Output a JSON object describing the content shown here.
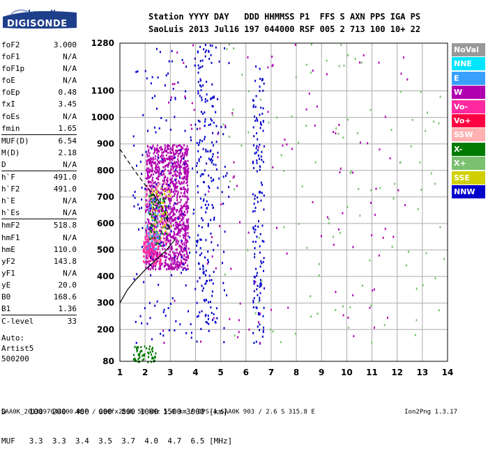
{
  "logo": {
    "top": "Lowell",
    "bottom": "DIGISONDE"
  },
  "header": {
    "line1": "Station YYYY DAY   DDD HHMMSS P1  FFS S AXN PPS IGA PS",
    "line2": "SaoLuis 2013 Jul16 197 044000 RSF 005 2 713 100 10+ 22"
  },
  "params": [
    {
      "name": "foF2",
      "value": "3.000",
      "sep": false
    },
    {
      "name": "foF1",
      "value": "N/A",
      "sep": false
    },
    {
      "name": "foF1p",
      "value": "N/A",
      "sep": false
    },
    {
      "name": "foE",
      "value": "N/A",
      "sep": false
    },
    {
      "name": "foEp",
      "value": "0.48",
      "sep": false
    },
    {
      "name": "fxI",
      "value": "3.45",
      "sep": false
    },
    {
      "name": "foEs",
      "value": "N/A",
      "sep": false
    },
    {
      "name": "fmin",
      "value": "1.65",
      "sep": false
    },
    {
      "name": "MUF(D)",
      "value": "6.54",
      "sep": true
    },
    {
      "name": "M(D)",
      "value": "2.18",
      "sep": false
    },
    {
      "name": "D",
      "value": "N/A",
      "sep": false
    },
    {
      "name": "h`F",
      "value": "491.0",
      "sep": true
    },
    {
      "name": "h`F2",
      "value": "491.0",
      "sep": false
    },
    {
      "name": "h`E",
      "value": "N/A",
      "sep": false
    },
    {
      "name": "h`Es",
      "value": "N/A",
      "sep": false
    },
    {
      "name": "hmF2",
      "value": "518.8",
      "sep": true
    },
    {
      "name": "hmF1",
      "value": "N/A",
      "sep": false
    },
    {
      "name": "hmE",
      "value": "110.0",
      "sep": false
    },
    {
      "name": "yF2",
      "value": "143.8",
      "sep": false
    },
    {
      "name": "yF1",
      "value": "N/A",
      "sep": false
    },
    {
      "name": "yE",
      "value": "20.0",
      "sep": false
    },
    {
      "name": "B0",
      "value": "168.6",
      "sep": false
    },
    {
      "name": "B1",
      "value": "1.36",
      "sep": false
    },
    {
      "name": "C-level",
      "value": "33",
      "sep": true
    }
  ],
  "auto": {
    "line1": "Auto:",
    "line2": "Artist5",
    "line3": "500200"
  },
  "muf_table": {
    "d_line": "D     100  200  400  600  800 1000 1500 3000 [km]",
    "muf_line": "MUF   3.3  3.3  3.4  3.5  3.7  4.0  4.7  6.5 [MHz]"
  },
  "footer": {
    "left": "SAA0K_2013197044000.RSF / 260fx256h 50 kHz 5.0 km / DPS-4 SAA0K 903 / 2.6 S 315.8 E",
    "right": "Ion2Png 1.3.17"
  },
  "legend": [
    {
      "label": "NoVal",
      "color": "#999999"
    },
    {
      "label": "NNE",
      "color": "#00e5ff"
    },
    {
      "label": "E",
      "color": "#3aa0ff"
    },
    {
      "label": "W",
      "color": "#b000b0"
    },
    {
      "label": "Vo-",
      "color": "#ff2aa0"
    },
    {
      "label": "Vo+",
      "color": "#ff0040"
    },
    {
      "label": "SSW",
      "color": "#ffb0b0"
    },
    {
      "label": "X-",
      "color": "#007a00"
    },
    {
      "label": "X+",
      "color": "#7ac070"
    },
    {
      "label": "SSE",
      "color": "#d0d000"
    },
    {
      "label": "NNW",
      "color": "#0000cc"
    }
  ],
  "chart_data": {
    "type": "scatter",
    "x_ticks": [
      "1",
      "2",
      "3",
      "4",
      "5",
      "6",
      "7",
      "8",
      "9",
      "10",
      "11",
      "12",
      "13",
      "14"
    ],
    "y_ticks": [
      "80",
      "200",
      "300",
      "400",
      "500",
      "600",
      "700",
      "800",
      "900",
      "1000",
      "1100",
      "1280"
    ],
    "xlim": [
      1,
      14
    ],
    "ylim": [
      80,
      1280
    ],
    "grid": true,
    "legend_position": "right",
    "clusters": [
      {
        "name": "F2 trace W",
        "fmin": 2.0,
        "fmax": 3.7,
        "hmin": 430,
        "hmax": 900,
        "color": "#b000b0",
        "n": 1300
      },
      {
        "name": "F2 trace Vo-",
        "fmin": 1.9,
        "fmax": 2.6,
        "hmin": 450,
        "hmax": 560,
        "color": "#ff2aa0",
        "n": 160
      },
      {
        "name": "F2 trace SSW",
        "fmin": 2.0,
        "fmax": 2.9,
        "hmin": 520,
        "hmax": 760,
        "color": "#ffb0b0",
        "n": 90
      },
      {
        "name": "F2 trace X-",
        "fmin": 2.1,
        "fmax": 2.9,
        "hmin": 520,
        "hmax": 720,
        "color": "#007a00",
        "n": 70
      },
      {
        "name": "F2 trace SSE",
        "fmin": 2.2,
        "fmax": 3.0,
        "hmin": 560,
        "hmax": 740,
        "color": "#d0d000",
        "n": 40
      },
      {
        "name": "F2 trace E",
        "fmin": 2.0,
        "fmax": 2.6,
        "hmin": 500,
        "hmax": 700,
        "color": "#3aa0ff",
        "n": 40
      },
      {
        "name": "multihop 2",
        "fmin": 4.0,
        "fmax": 4.7,
        "hmin": 200,
        "hmax": 1280,
        "color": "#0000cc",
        "n": 160
      },
      {
        "name": "multihop 3",
        "fmin": 6.25,
        "fmax": 6.7,
        "hmin": 150,
        "hmax": 1200,
        "color": "#0000cc",
        "n": 150
      },
      {
        "name": "low echoes",
        "fmin": 1.5,
        "fmax": 2.4,
        "hmin": 80,
        "hmax": 140,
        "color": "#007a00",
        "n": 60
      },
      {
        "name": "scatter NNW",
        "fmin": 1.5,
        "fmax": 5.3,
        "hmin": 150,
        "hmax": 1280,
        "color": "#0000cc",
        "n": 230
      },
      {
        "name": "scatter W",
        "fmin": 2.5,
        "fmax": 12.5,
        "hmin": 150,
        "hmax": 1280,
        "color": "#b000b0",
        "n": 120
      },
      {
        "name": "scatter misc",
        "fmin": 5.0,
        "fmax": 14.0,
        "hmin": 150,
        "hmax": 1280,
        "color": "#7ac070",
        "n": 110
      }
    ],
    "curves": [
      {
        "name": "profile solid",
        "style": "solid",
        "points": [
          [
            1.0,
            300
          ],
          [
            1.3,
            350
          ],
          [
            1.6,
            385
          ],
          [
            2.0,
            425
          ],
          [
            2.4,
            460
          ],
          [
            2.8,
            495
          ],
          [
            3.2,
            540
          ]
        ]
      },
      {
        "name": "profile dashed",
        "style": "dashed",
        "points": [
          [
            1.0,
            880
          ],
          [
            1.5,
            810
          ],
          [
            2.0,
            745
          ],
          [
            2.5,
            690
          ],
          [
            2.8,
            640
          ],
          [
            3.0,
            575
          ]
        ]
      }
    ]
  }
}
